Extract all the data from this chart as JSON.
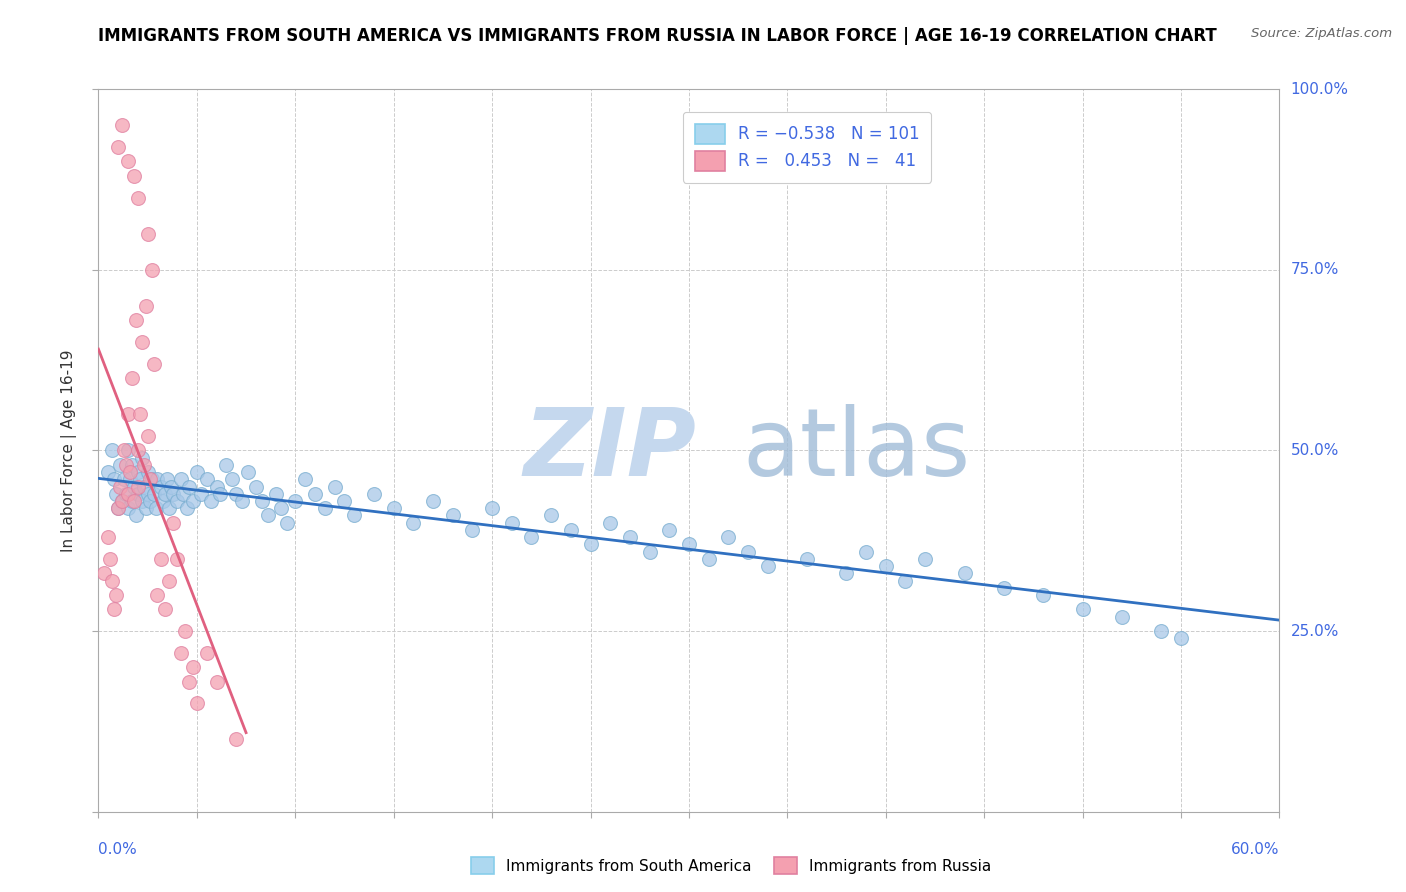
{
  "title": "IMMIGRANTS FROM SOUTH AMERICA VS IMMIGRANTS FROM RUSSIA IN LABOR FORCE | AGE 16-19 CORRELATION CHART",
  "source": "Source: ZipAtlas.com",
  "ylabel": "In Labor Force | Age 16-19",
  "xlim": [
    0.0,
    0.6
  ],
  "ylim": [
    0.0,
    1.0
  ],
  "ytick_values": [
    0.0,
    0.25,
    0.5,
    0.75,
    1.0
  ],
  "ytick_labels": [
    "",
    "25.0%",
    "50.0%",
    "75.0%",
    "100.0%"
  ],
  "color_blue_fill": "#a8c8e8",
  "color_blue_edge": "#7aaed0",
  "color_pink_fill": "#f4a0b0",
  "color_pink_edge": "#e080a0",
  "color_blue_line": "#3070c0",
  "color_pink_line": "#e06080",
  "watermark_zip_color": "#c5d8ee",
  "watermark_atlas_color": "#a0bcd8",
  "blue_x": [
    0.005,
    0.007,
    0.008,
    0.009,
    0.01,
    0.011,
    0.012,
    0.013,
    0.014,
    0.015,
    0.015,
    0.016,
    0.017,
    0.017,
    0.018,
    0.019,
    0.02,
    0.02,
    0.021,
    0.022,
    0.022,
    0.023,
    0.024,
    0.025,
    0.025,
    0.026,
    0.027,
    0.028,
    0.029,
    0.03,
    0.032,
    0.033,
    0.034,
    0.035,
    0.036,
    0.037,
    0.038,
    0.04,
    0.042,
    0.043,
    0.045,
    0.046,
    0.048,
    0.05,
    0.052,
    0.055,
    0.057,
    0.06,
    0.062,
    0.065,
    0.068,
    0.07,
    0.073,
    0.076,
    0.08,
    0.083,
    0.086,
    0.09,
    0.093,
    0.096,
    0.1,
    0.105,
    0.11,
    0.115,
    0.12,
    0.125,
    0.13,
    0.14,
    0.15,
    0.16,
    0.17,
    0.18,
    0.19,
    0.2,
    0.21,
    0.22,
    0.23,
    0.24,
    0.25,
    0.26,
    0.27,
    0.28,
    0.29,
    0.3,
    0.31,
    0.32,
    0.33,
    0.34,
    0.36,
    0.38,
    0.39,
    0.4,
    0.41,
    0.42,
    0.44,
    0.46,
    0.48,
    0.5,
    0.52,
    0.54,
    0.55
  ],
  "blue_y": [
    0.47,
    0.5,
    0.46,
    0.44,
    0.42,
    0.48,
    0.43,
    0.46,
    0.44,
    0.42,
    0.5,
    0.46,
    0.43,
    0.48,
    0.45,
    0.41,
    0.47,
    0.44,
    0.46,
    0.43,
    0.49,
    0.45,
    0.42,
    0.47,
    0.44,
    0.43,
    0.46,
    0.44,
    0.42,
    0.46,
    0.45,
    0.43,
    0.44,
    0.46,
    0.42,
    0.45,
    0.44,
    0.43,
    0.46,
    0.44,
    0.42,
    0.45,
    0.43,
    0.47,
    0.44,
    0.46,
    0.43,
    0.45,
    0.44,
    0.48,
    0.46,
    0.44,
    0.43,
    0.47,
    0.45,
    0.43,
    0.41,
    0.44,
    0.42,
    0.4,
    0.43,
    0.46,
    0.44,
    0.42,
    0.45,
    0.43,
    0.41,
    0.44,
    0.42,
    0.4,
    0.43,
    0.41,
    0.39,
    0.42,
    0.4,
    0.38,
    0.41,
    0.39,
    0.37,
    0.4,
    0.38,
    0.36,
    0.39,
    0.37,
    0.35,
    0.38,
    0.36,
    0.34,
    0.35,
    0.33,
    0.36,
    0.34,
    0.32,
    0.35,
    0.33,
    0.31,
    0.3,
    0.28,
    0.27,
    0.25,
    0.24
  ],
  "pink_x": [
    0.003,
    0.005,
    0.006,
    0.007,
    0.008,
    0.009,
    0.01,
    0.011,
    0.012,
    0.013,
    0.014,
    0.015,
    0.015,
    0.016,
    0.017,
    0.018,
    0.019,
    0.02,
    0.02,
    0.021,
    0.022,
    0.023,
    0.024,
    0.025,
    0.026,
    0.027,
    0.028,
    0.03,
    0.032,
    0.034,
    0.036,
    0.038,
    0.04,
    0.042,
    0.044,
    0.046,
    0.048,
    0.05,
    0.055,
    0.06,
    0.07
  ],
  "pink_y": [
    0.33,
    0.38,
    0.35,
    0.32,
    0.28,
    0.3,
    0.42,
    0.45,
    0.43,
    0.5,
    0.48,
    0.44,
    0.55,
    0.47,
    0.6,
    0.43,
    0.68,
    0.45,
    0.5,
    0.55,
    0.65,
    0.48,
    0.7,
    0.52,
    0.46,
    0.75,
    0.62,
    0.3,
    0.35,
    0.28,
    0.32,
    0.4,
    0.35,
    0.22,
    0.25,
    0.18,
    0.2,
    0.15,
    0.22,
    0.18,
    0.1
  ],
  "pink_x_high": [
    0.01,
    0.012,
    0.015,
    0.018,
    0.02,
    0.025
  ],
  "pink_y_high": [
    0.92,
    0.95,
    0.9,
    0.88,
    0.85,
    0.8
  ]
}
